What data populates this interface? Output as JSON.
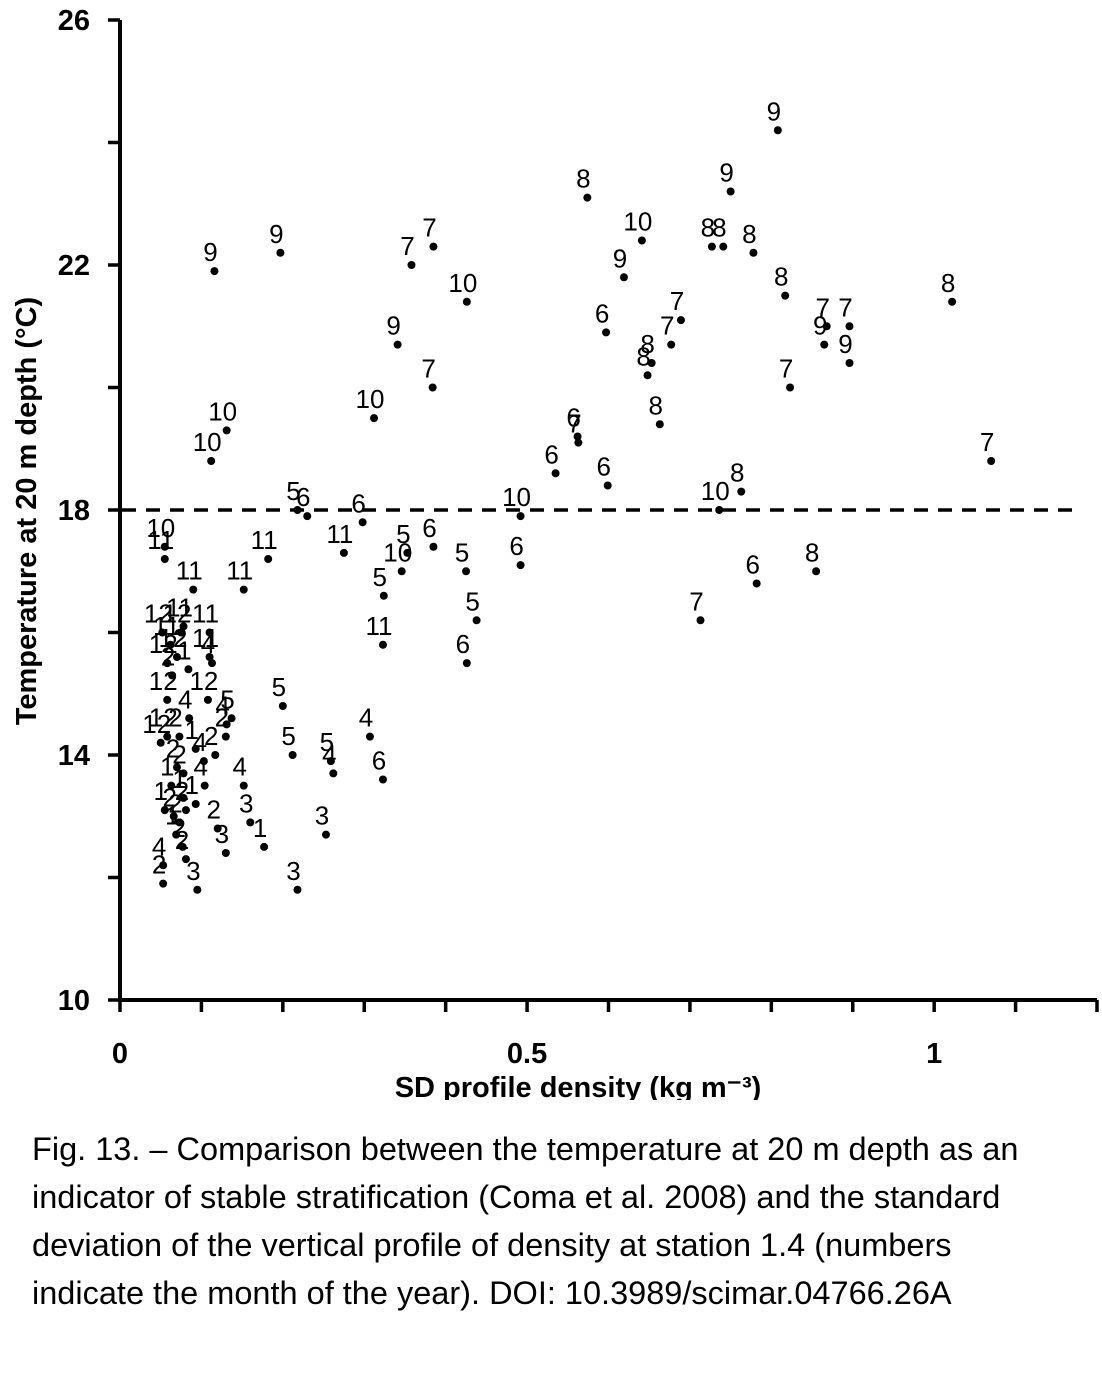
{
  "caption": "Fig. 13. – Comparison between the temperature at 20 m depth as an indicator of stable stratification (Coma et al. 2008) and the standard deviation of the vertical profile of density at station 1.4 (numbers indicate the month of the year). DOI: 10.3989/scimar.04766.26A",
  "chart_data": {
    "type": "scatter",
    "xlabel": "SD profile density (kg m⁻³)",
    "ylabel": "Temperature at 20 m depth (°C)",
    "xlim": [
      0,
      1.2
    ],
    "ylim": [
      10,
      26
    ],
    "x_tick_labels": [
      "0",
      "0.5",
      "1"
    ],
    "y_tick_labels": [
      "10",
      "14",
      "18",
      "22",
      "26"
    ],
    "reference_line": {
      "y": 18,
      "style": "dashed"
    },
    "grid": false,
    "point_labels": "month of the year",
    "points": [
      {
        "x": 0.116,
        "y": 21.9,
        "label": "9"
      },
      {
        "x": 0.197,
        "y": 22.2,
        "label": "9"
      },
      {
        "x": 0.385,
        "y": 22.3,
        "label": "7"
      },
      {
        "x": 0.358,
        "y": 22.0,
        "label": "7"
      },
      {
        "x": 0.426,
        "y": 21.4,
        "label": "10"
      },
      {
        "x": 0.341,
        "y": 20.7,
        "label": "9"
      },
      {
        "x": 0.384,
        "y": 20.0,
        "label": "7"
      },
      {
        "x": 0.312,
        "y": 19.5,
        "label": "10"
      },
      {
        "x": 0.131,
        "y": 19.3,
        "label": "10"
      },
      {
        "x": 0.112,
        "y": 18.8,
        "label": "10"
      },
      {
        "x": 0.574,
        "y": 23.1,
        "label": "8"
      },
      {
        "x": 0.808,
        "y": 24.2,
        "label": "9"
      },
      {
        "x": 0.75,
        "y": 23.2,
        "label": "9"
      },
      {
        "x": 0.641,
        "y": 22.4,
        "label": "10"
      },
      {
        "x": 0.727,
        "y": 22.3,
        "label": "8"
      },
      {
        "x": 0.741,
        "y": 22.3,
        "label": "8"
      },
      {
        "x": 0.778,
        "y": 22.2,
        "label": "8"
      },
      {
        "x": 0.619,
        "y": 21.8,
        "label": "9"
      },
      {
        "x": 0.817,
        "y": 21.5,
        "label": "8"
      },
      {
        "x": 1.022,
        "y": 21.4,
        "label": "8"
      },
      {
        "x": 0.689,
        "y": 21.1,
        "label": "7"
      },
      {
        "x": 0.597,
        "y": 20.9,
        "label": "6"
      },
      {
        "x": 0.868,
        "y": 21.0,
        "label": "7"
      },
      {
        "x": 0.896,
        "y": 21.0,
        "label": "7"
      },
      {
        "x": 0.677,
        "y": 20.7,
        "label": "7"
      },
      {
        "x": 0.865,
        "y": 20.7,
        "label": "9"
      },
      {
        "x": 0.653,
        "y": 20.4,
        "label": "8"
      },
      {
        "x": 0.648,
        "y": 20.2,
        "label": "8"
      },
      {
        "x": 0.896,
        "y": 20.4,
        "label": "9"
      },
      {
        "x": 0.823,
        "y": 20.0,
        "label": "7"
      },
      {
        "x": 0.663,
        "y": 19.4,
        "label": "8"
      },
      {
        "x": 0.562,
        "y": 19.2,
        "label": "6"
      },
      {
        "x": 0.563,
        "y": 19.1,
        "label": "7"
      },
      {
        "x": 1.07,
        "y": 18.8,
        "label": "7"
      },
      {
        "x": 0.535,
        "y": 18.6,
        "label": "6"
      },
      {
        "x": 0.599,
        "y": 18.4,
        "label": "6"
      },
      {
        "x": 0.763,
        "y": 18.3,
        "label": "8"
      },
      {
        "x": 0.736,
        "y": 18.0,
        "label": "10"
      },
      {
        "x": 0.492,
        "y": 17.9,
        "label": "10"
      },
      {
        "x": 0.218,
        "y": 18.0,
        "label": "5"
      },
      {
        "x": 0.23,
        "y": 17.9,
        "label": "6"
      },
      {
        "x": 0.298,
        "y": 17.8,
        "label": "6"
      },
      {
        "x": 0.385,
        "y": 17.4,
        "label": "6"
      },
      {
        "x": 0.275,
        "y": 17.3,
        "label": "11"
      },
      {
        "x": 0.182,
        "y": 17.2,
        "label": "11"
      },
      {
        "x": 0.353,
        "y": 17.3,
        "label": "5"
      },
      {
        "x": 0.346,
        "y": 17.0,
        "label": "10"
      },
      {
        "x": 0.492,
        "y": 17.1,
        "label": "6"
      },
      {
        "x": 0.425,
        "y": 17.0,
        "label": "5"
      },
      {
        "x": 0.782,
        "y": 16.8,
        "label": "6"
      },
      {
        "x": 0.855,
        "y": 17.0,
        "label": "8"
      },
      {
        "x": 0.324,
        "y": 16.6,
        "label": "5"
      },
      {
        "x": 0.438,
        "y": 16.2,
        "label": "5"
      },
      {
        "x": 0.713,
        "y": 16.2,
        "label": "7"
      },
      {
        "x": 0.323,
        "y": 15.8,
        "label": "11"
      },
      {
        "x": 0.426,
        "y": 15.5,
        "label": "6"
      },
      {
        "x": 0.152,
        "y": 16.7,
        "label": "11"
      },
      {
        "x": 0.09,
        "y": 16.7,
        "label": "11"
      },
      {
        "x": 0.055,
        "y": 17.2,
        "label": "11"
      },
      {
        "x": 0.055,
        "y": 17.4,
        "label": "10"
      },
      {
        "x": 0.052,
        "y": 16.0,
        "label": "12"
      },
      {
        "x": 0.075,
        "y": 16.0,
        "label": "12"
      },
      {
        "x": 0.078,
        "y": 16.1,
        "label": "11"
      },
      {
        "x": 0.11,
        "y": 16.0,
        "label": "11"
      },
      {
        "x": 0.062,
        "y": 15.8,
        "label": "11"
      },
      {
        "x": 0.07,
        "y": 15.6,
        "label": "12"
      },
      {
        "x": 0.11,
        "y": 15.6,
        "label": "11"
      },
      {
        "x": 0.113,
        "y": 15.5,
        "label": "4"
      },
      {
        "x": 0.058,
        "y": 15.5,
        "label": "12"
      },
      {
        "x": 0.064,
        "y": 15.3,
        "label": "2"
      },
      {
        "x": 0.084,
        "y": 15.4,
        "label": "1"
      },
      {
        "x": 0.2,
        "y": 14.8,
        "label": "5"
      },
      {
        "x": 0.108,
        "y": 14.9,
        "label": "12"
      },
      {
        "x": 0.058,
        "y": 14.9,
        "label": "12"
      },
      {
        "x": 0.085,
        "y": 14.6,
        "label": "4"
      },
      {
        "x": 0.137,
        "y": 14.6,
        "label": "5"
      },
      {
        "x": 0.131,
        "y": 14.5,
        "label": "4"
      },
      {
        "x": 0.13,
        "y": 14.3,
        "label": "2"
      },
      {
        "x": 0.05,
        "y": 14.2,
        "label": "12"
      },
      {
        "x": 0.058,
        "y": 14.3,
        "label": "12"
      },
      {
        "x": 0.073,
        "y": 14.3,
        "label": "2"
      },
      {
        "x": 0.093,
        "y": 14.1,
        "label": "1"
      },
      {
        "x": 0.117,
        "y": 14.0,
        "label": "2"
      },
      {
        "x": 0.07,
        "y": 13.8,
        "label": "2"
      },
      {
        "x": 0.078,
        "y": 13.7,
        "label": "2"
      },
      {
        "x": 0.104,
        "y": 13.5,
        "label": "4"
      },
      {
        "x": 0.103,
        "y": 13.9,
        "label": "4"
      },
      {
        "x": 0.307,
        "y": 14.3,
        "label": "4"
      },
      {
        "x": 0.212,
        "y": 14.0,
        "label": "5"
      },
      {
        "x": 0.259,
        "y": 13.9,
        "label": "5"
      },
      {
        "x": 0.262,
        "y": 13.7,
        "label": "4"
      },
      {
        "x": 0.323,
        "y": 13.6,
        "label": "6"
      },
      {
        "x": 0.152,
        "y": 13.5,
        "label": "4"
      },
      {
        "x": 0.063,
        "y": 13.5,
        "label": "1"
      },
      {
        "x": 0.055,
        "y": 13.1,
        "label": "1"
      },
      {
        "x": 0.078,
        "y": 13.3,
        "label": "1"
      },
      {
        "x": 0.066,
        "y": 13.0,
        "label": "2"
      },
      {
        "x": 0.081,
        "y": 13.1,
        "label": "2"
      },
      {
        "x": 0.093,
        "y": 13.2,
        "label": "1"
      },
      {
        "x": 0.16,
        "y": 12.9,
        "label": "3"
      },
      {
        "x": 0.073,
        "y": 12.9,
        "label": "2"
      },
      {
        "x": 0.069,
        "y": 12.7,
        "label": "1"
      },
      {
        "x": 0.12,
        "y": 12.8,
        "label": "2"
      },
      {
        "x": 0.177,
        "y": 12.5,
        "label": "1"
      },
      {
        "x": 0.253,
        "y": 12.7,
        "label": "3"
      },
      {
        "x": 0.13,
        "y": 12.4,
        "label": "3"
      },
      {
        "x": 0.077,
        "y": 12.5,
        "label": "2"
      },
      {
        "x": 0.081,
        "y": 12.3,
        "label": "2"
      },
      {
        "x": 0.053,
        "y": 12.2,
        "label": "4"
      },
      {
        "x": 0.053,
        "y": 11.9,
        "label": "2"
      },
      {
        "x": 0.095,
        "y": 11.8,
        "label": "3"
      },
      {
        "x": 0.218,
        "y": 11.8,
        "label": "3"
      }
    ]
  }
}
